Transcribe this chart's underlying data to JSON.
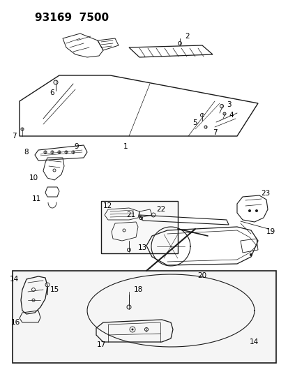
{
  "title": "93169  7500",
  "bg_color": "#ffffff",
  "line_color": "#1a1a1a",
  "title_fontsize": 11,
  "label_fontsize": 7.5,
  "figsize": [
    4.14,
    5.33
  ],
  "dpi": 100
}
